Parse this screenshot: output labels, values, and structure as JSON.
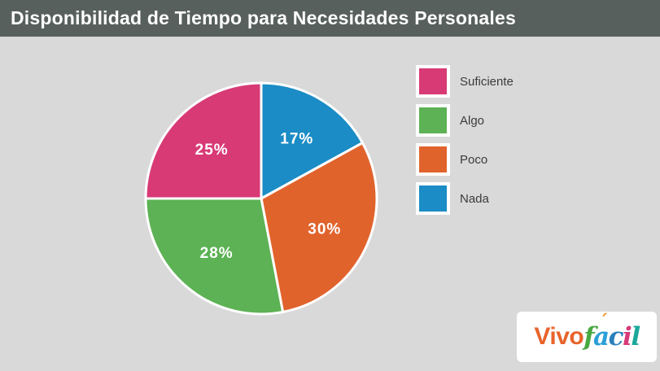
{
  "header": {
    "title": "Disponibilidad de Tiempo para Necesidades Personales",
    "bg_color": "#58605d",
    "text_color": "#ffffff"
  },
  "page": {
    "bg_color": "#d9d9d9"
  },
  "chart_data": {
    "type": "pie",
    "title": "Disponibilidad de Tiempo para Necesidades Personales",
    "categories": [
      "Suficiente",
      "Algo",
      "Poco",
      "Nada"
    ],
    "values": [
      25,
      28,
      30,
      17
    ],
    "unit": "%",
    "legend_position": "right",
    "slice_border_color": "#ffffff",
    "start_angle": "12-oclock, clockwise",
    "slices": [
      {
        "label": "Nada",
        "value": 17,
        "text": "17%",
        "color": "#1b8cc5"
      },
      {
        "label": "Poco",
        "value": 30,
        "text": "30%",
        "color": "#e1632c"
      },
      {
        "label": "Algo",
        "value": 28,
        "text": "28%",
        "color": "#5cb254"
      },
      {
        "label": "Suficiente",
        "value": 25,
        "text": "25%",
        "color": "#d83a76"
      }
    ]
  },
  "legend": {
    "items": [
      {
        "label": "Suficiente",
        "color": "#d83a76"
      },
      {
        "label": "Algo",
        "color": "#5cb254"
      },
      {
        "label": "Poco",
        "color": "#e1632c"
      },
      {
        "label": "Nada",
        "color": "#1b8cc5"
      }
    ]
  },
  "logo": {
    "text": "Vivofácil",
    "part1": "Vivo",
    "part1_color": "#e8642c",
    "part2_letters": [
      {
        "ch": "f",
        "color": "#49a942"
      },
      {
        "ch": "a",
        "color": "#2a9fd8",
        "accent": "´",
        "accent_color": "#f0932a"
      },
      {
        "ch": "c",
        "color": "#2a80ba"
      },
      {
        "ch": "i",
        "color": "#d63a78"
      },
      {
        "ch": "l",
        "color": "#19a89a"
      }
    ]
  }
}
